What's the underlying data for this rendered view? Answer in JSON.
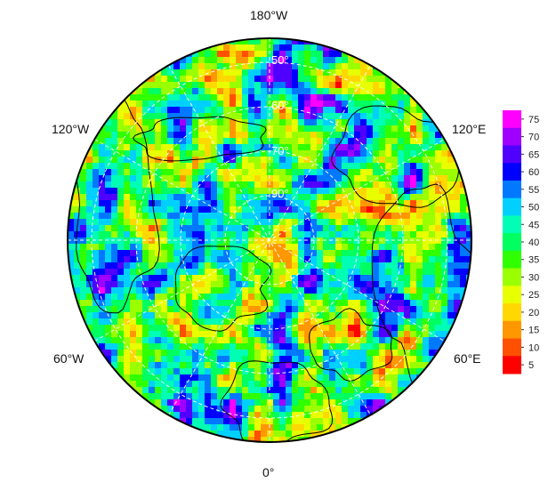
{
  "map": {
    "projection": "north-polar-stereographic",
    "longitude_labels": {
      "top": "180°W",
      "left_upper": "120°W",
      "right_upper": "120°E",
      "left_lower": "60°W",
      "right_lower": "60°E",
      "bottom": "0°"
    },
    "latitude_labels": [
      "50°",
      "60°",
      "70°",
      "90°"
    ],
    "graticule_style": "dashed",
    "coastlines": true
  },
  "colorbar": {
    "ticks": [
      75,
      70,
      65,
      60,
      55,
      50,
      45,
      40,
      35,
      30,
      25,
      20,
      15,
      10,
      5
    ],
    "colors": [
      "#ff00ff",
      "#a000ff",
      "#5000ff",
      "#0000ff",
      "#0078ff",
      "#00d0ff",
      "#00ffb4",
      "#00ff60",
      "#30ff00",
      "#9aff00",
      "#e8ff00",
      "#ffd800",
      "#ff9800",
      "#ff5000",
      "#ff0000"
    ]
  },
  "palette": {
    "background": "#ffffff",
    "coastline": "#000000",
    "graticule": "#ffffff",
    "frame": "#000000"
  }
}
